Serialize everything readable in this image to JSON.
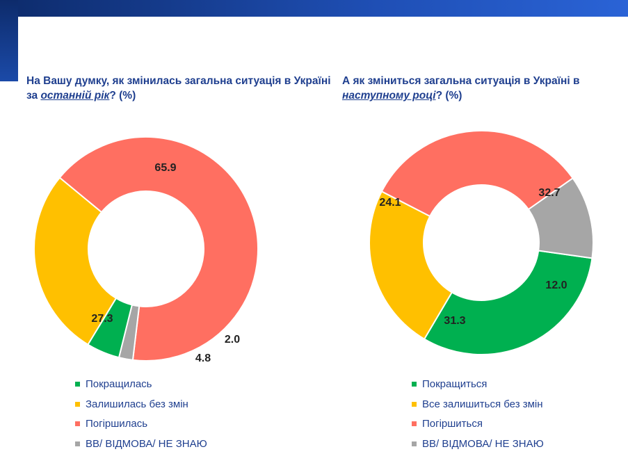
{
  "colors": {
    "improved": "#00b050",
    "same": "#ffc000",
    "worse": "#ff6f61",
    "dk": "#a6a6a6",
    "title": "#1f3f8f"
  },
  "chart_data": [
    {
      "type": "pie",
      "variant": "donut",
      "title_parts": [
        "На Вашу думку, як змінилась загальна ситуація в Україні за ",
        "останній рік",
        "? (%)"
      ],
      "categories": [
        "Покращилась",
        "Залишилась без змін",
        "Погіршилась",
        "ВВ/ ВІДМОВА/ НЕ ЗНАЮ"
      ],
      "values": [
        4.8,
        27.3,
        65.9,
        2.0
      ],
      "value_labels": [
        "4.8",
        "27.3",
        "65.9",
        "2.0"
      ],
      "legend": "bottom"
    },
    {
      "type": "pie",
      "variant": "donut",
      "title_parts": [
        "А як зміниться загальна ситуація в Україні в ",
        "наступному році",
        "? (%)"
      ],
      "categories": [
        "Покращиться",
        "Все залишиться без змін",
        "Погіршиться",
        "ВВ/ ВІДМОВА/ НЕ ЗНАЮ"
      ],
      "values": [
        31.3,
        24.1,
        32.7,
        12.0
      ],
      "value_labels": [
        "31.3",
        "24.1",
        "32.7",
        "12.0"
      ],
      "legend": "bottom"
    }
  ]
}
